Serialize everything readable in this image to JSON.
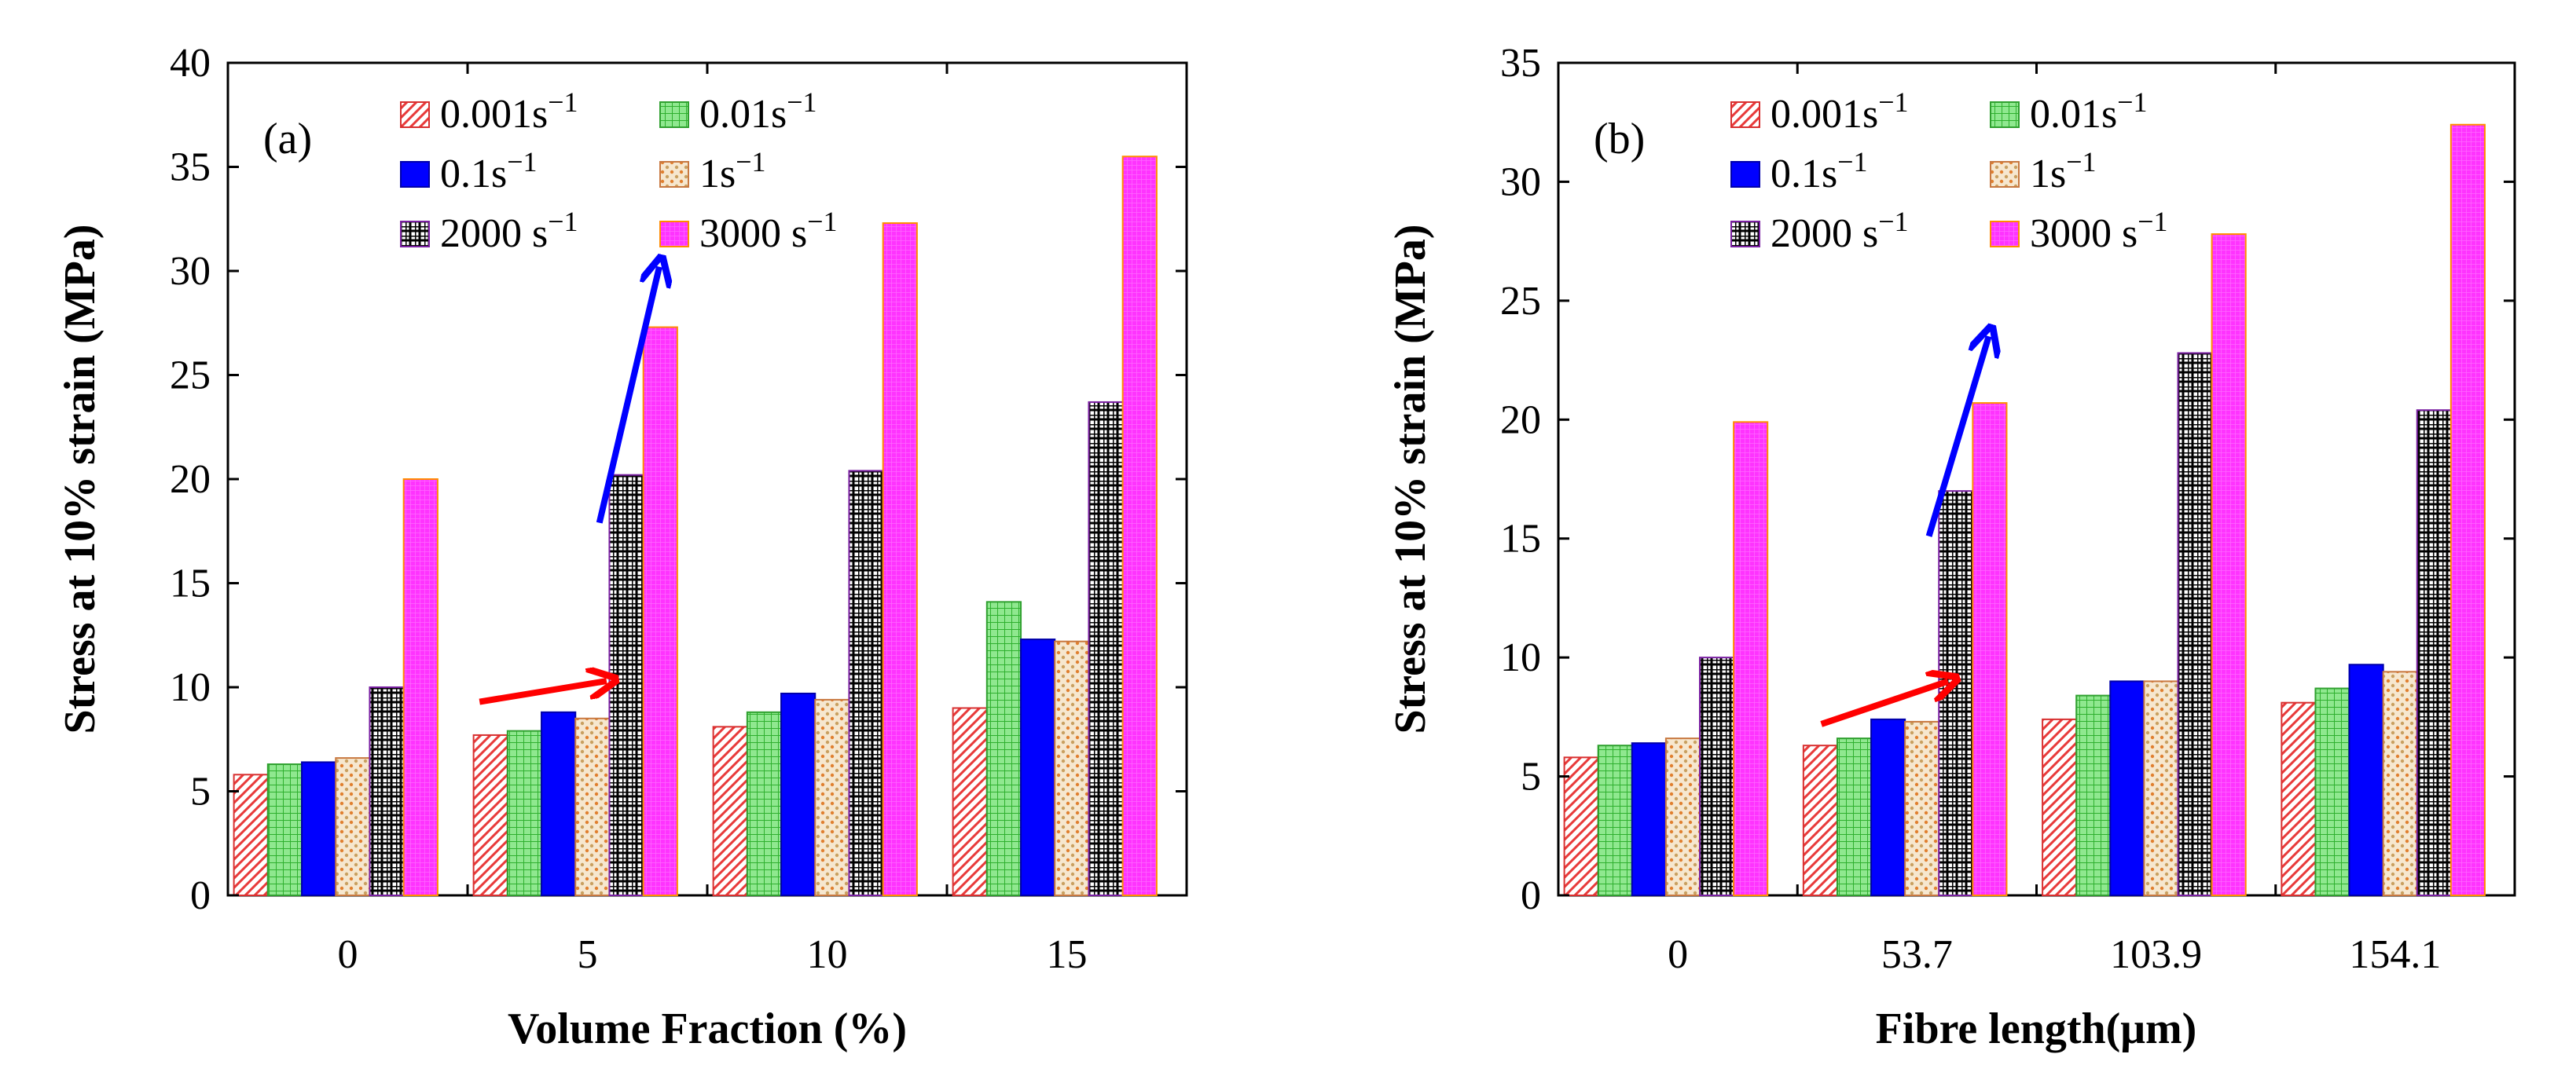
{
  "series_styles": [
    {
      "name": "0.001s-1",
      "fill": "hatch-red",
      "stroke": "#d83030"
    },
    {
      "name": "0.01s-1",
      "fill": "grid-green",
      "stroke": "#2fa02f"
    },
    {
      "name": "0.1s-1",
      "fill": "#0000ff",
      "stroke": "#0000aa"
    },
    {
      "name": "1s-1",
      "fill": "dots-tan",
      "stroke": "#c87840"
    },
    {
      "name": "2000 s-1",
      "fill": "checker-black",
      "stroke": "#7a1fa2"
    },
    {
      "name": "3000 s-1",
      "fill": "dense-magenta",
      "stroke": "#ff8c00"
    }
  ],
  "legend": [
    {
      "base": "0.001s",
      "sup": "−1"
    },
    {
      "base": "0.01s",
      "sup": "−1"
    },
    {
      "base": "0.1s",
      "sup": "−1"
    },
    {
      "base": "1s",
      "sup": "−1"
    },
    {
      "base": "2000 s",
      "sup": "−1"
    },
    {
      "base": "3000 s",
      "sup": "−1"
    }
  ],
  "chart_data": [
    {
      "type": "bar",
      "panel_label": "(a)",
      "xlabel": "Volume Fraction (%)",
      "ylabel": "Stress at 10% strain (MPa)",
      "categories": [
        "0",
        "5",
        "10",
        "15"
      ],
      "ylim": [
        0,
        40
      ],
      "yticks": [
        0,
        5,
        10,
        15,
        20,
        25,
        30,
        35,
        40
      ],
      "legend_position": "top-left",
      "series": [
        {
          "name": "0.001s-1",
          "values": [
            5.8,
            7.7,
            8.1,
            9.0
          ]
        },
        {
          "name": "0.01s-1",
          "values": [
            6.3,
            7.9,
            8.8,
            14.1
          ]
        },
        {
          "name": "0.1s-1",
          "values": [
            6.4,
            8.8,
            9.7,
            12.3
          ]
        },
        {
          "name": "1s-1",
          "values": [
            6.6,
            8.5,
            9.4,
            12.2
          ]
        },
        {
          "name": "2000 s-1",
          "values": [
            10.0,
            20.2,
            20.4,
            23.7
          ]
        },
        {
          "name": "3000 s-1",
          "values": [
            20.0,
            27.3,
            32.3,
            35.5
          ]
        }
      ],
      "annotations": [
        {
          "type": "arrow",
          "color": "#ff0000",
          "from": [
            0.55,
            9.3
          ],
          "to": [
            1.08,
            10.3
          ]
        },
        {
          "type": "arrow",
          "color": "#0000ff",
          "from": [
            1.05,
            17.9
          ],
          "to": [
            1.3,
            30.2
          ]
        }
      ]
    },
    {
      "type": "bar",
      "panel_label": "(b)",
      "xlabel": "Fibre length(μm)",
      "ylabel": "Stress at 10% strain (MPa)",
      "categories": [
        "0",
        "53.7",
        "103.9",
        "154.1"
      ],
      "ylim": [
        0,
        35
      ],
      "yticks": [
        0,
        5,
        10,
        15,
        20,
        25,
        30,
        35
      ],
      "legend_position": "top-left",
      "series": [
        {
          "name": "0.001s-1",
          "values": [
            5.8,
            6.3,
            7.4,
            8.1
          ]
        },
        {
          "name": "0.01s-1",
          "values": [
            6.3,
            6.6,
            8.4,
            8.7
          ]
        },
        {
          "name": "0.1s-1",
          "values": [
            6.4,
            7.4,
            9.0,
            9.7
          ]
        },
        {
          "name": "1s-1",
          "values": [
            6.6,
            7.3,
            9.0,
            9.4
          ]
        },
        {
          "name": "2000 s-1",
          "values": [
            10.0,
            17.0,
            22.8,
            20.4
          ]
        },
        {
          "name": "3000 s-1",
          "values": [
            19.9,
            20.7,
            27.8,
            32.4
          ]
        }
      ],
      "annotations": [
        {
          "type": "arrow",
          "color": "#ff0000",
          "from": [
            0.6,
            7.2
          ],
          "to": [
            1.13,
            9.0
          ]
        },
        {
          "type": "arrow",
          "color": "#0000ff",
          "from": [
            1.05,
            15.1
          ],
          "to": [
            1.3,
            23.5
          ]
        }
      ]
    }
  ]
}
